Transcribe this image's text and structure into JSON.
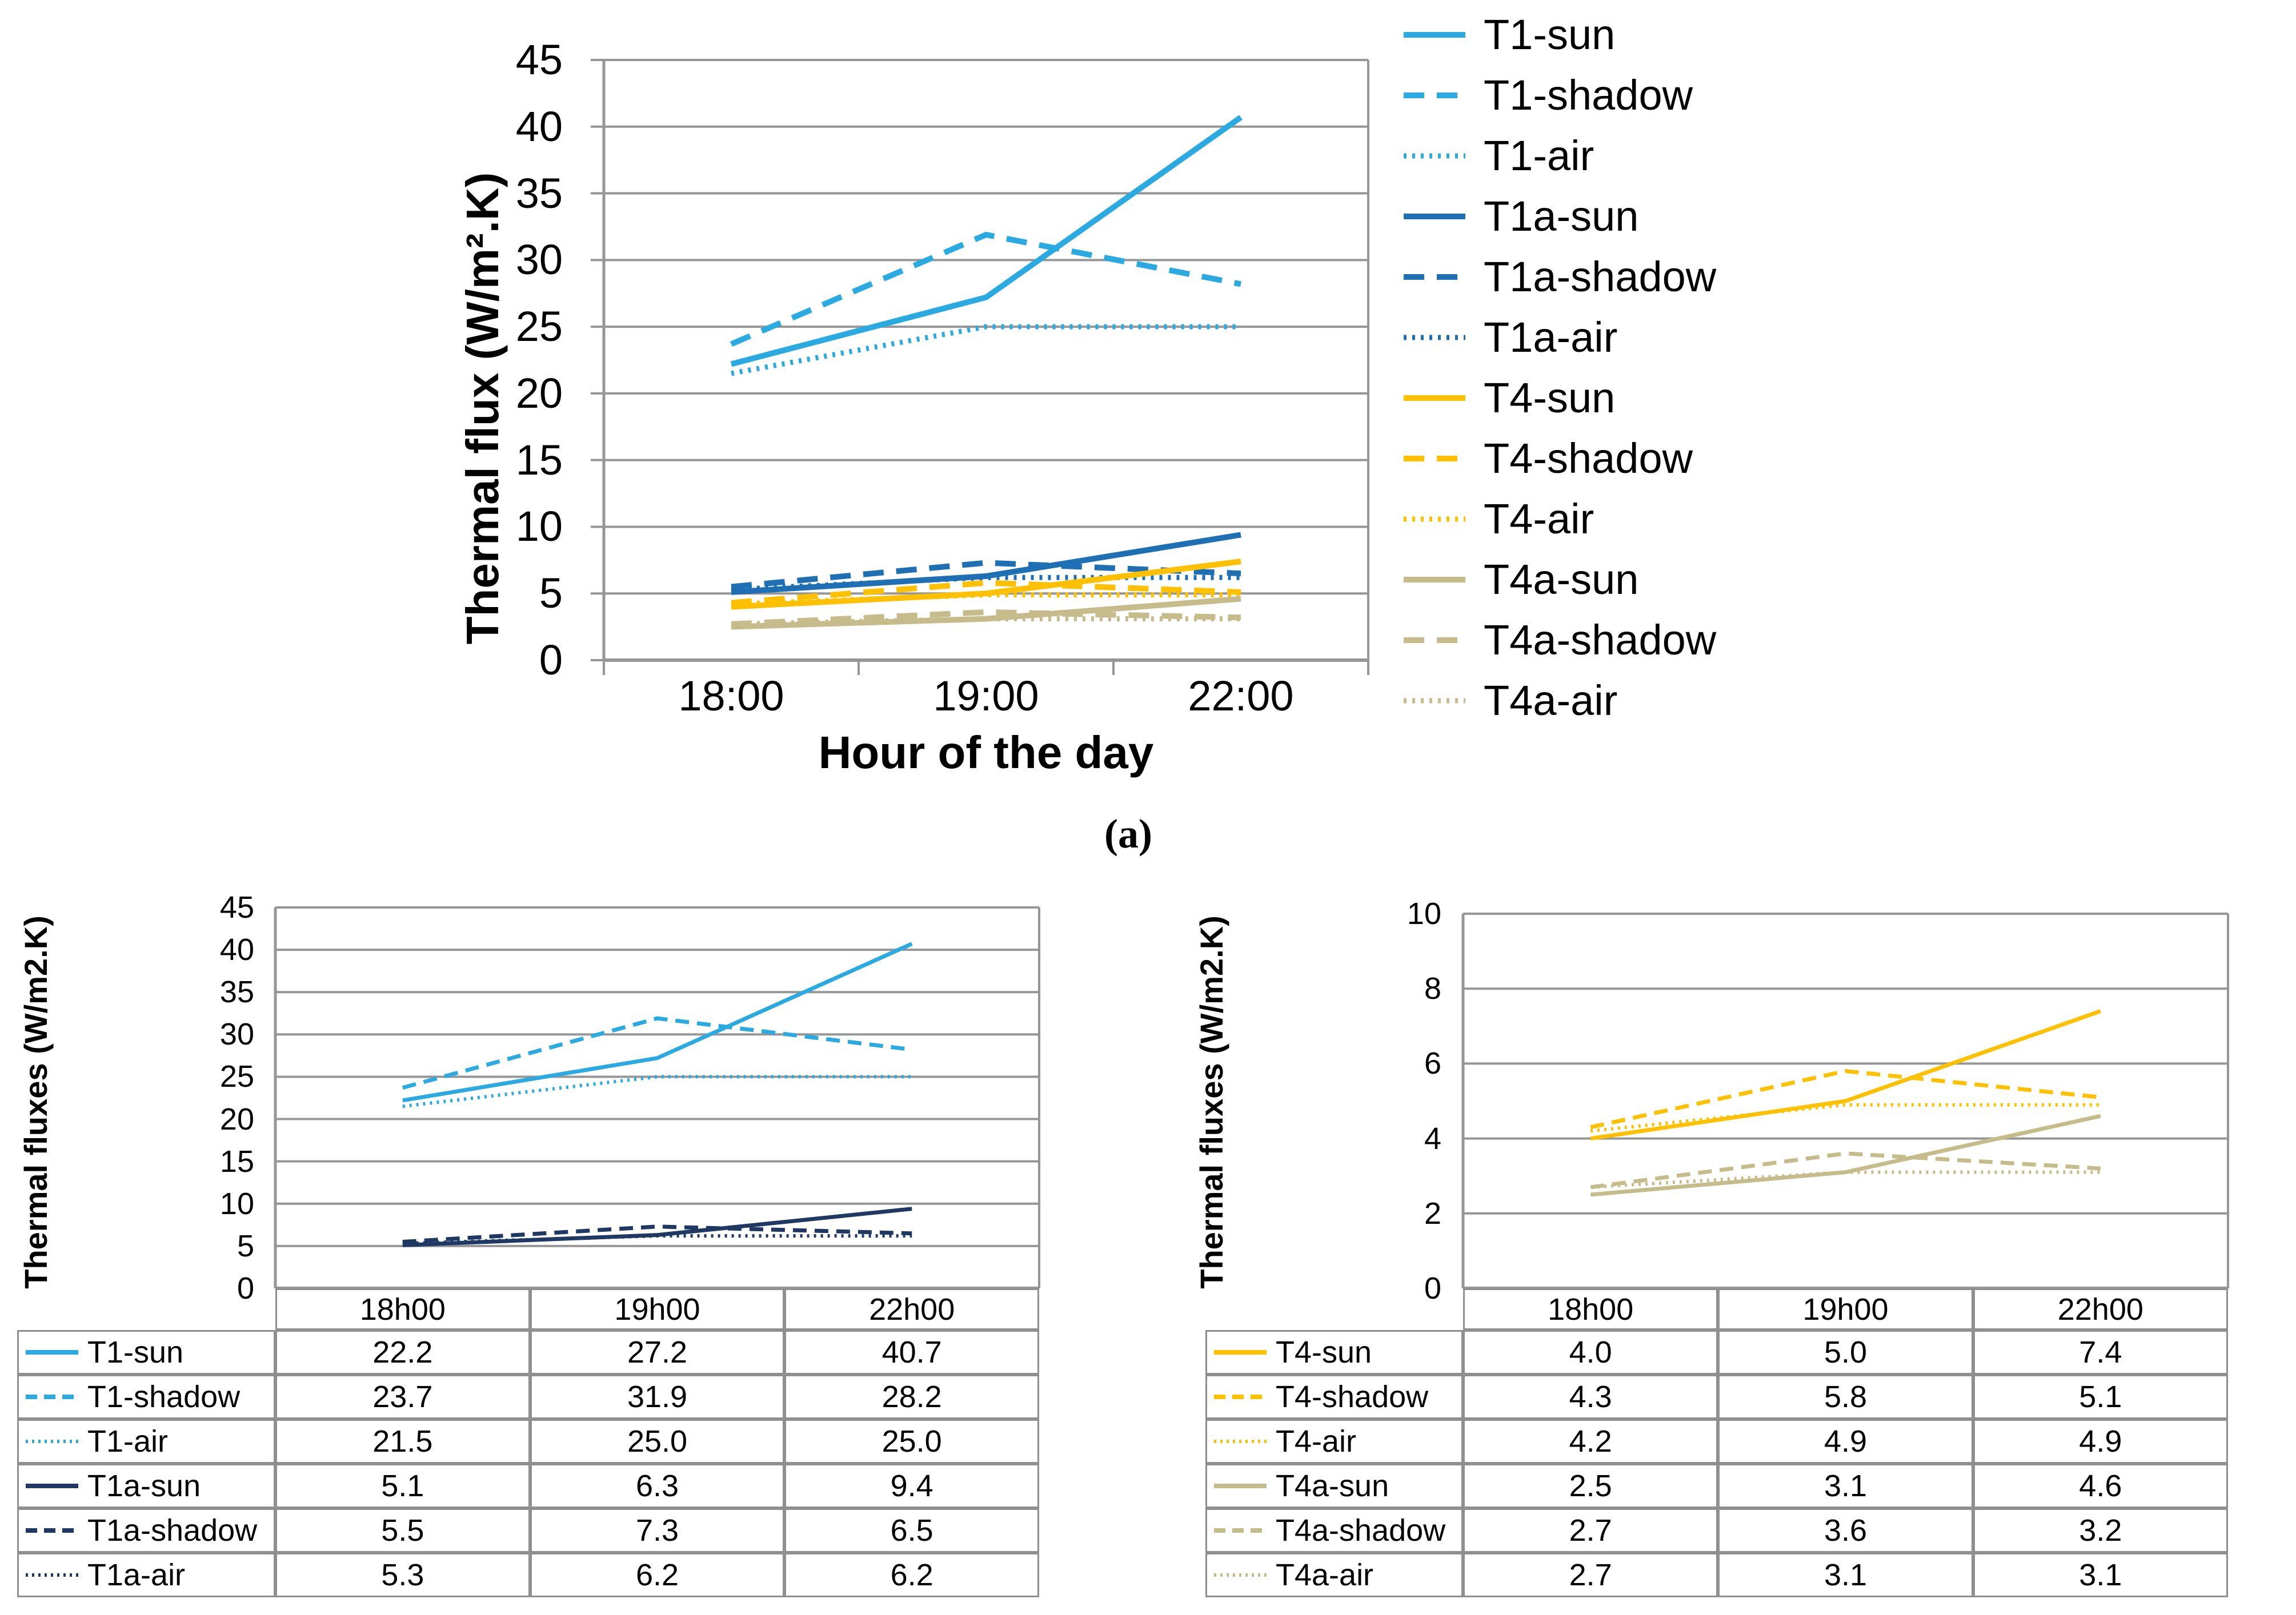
{
  "figure": {
    "panel_label": "(a)",
    "colors": {
      "t1": "#2BAAE2",
      "t1a": "#1F6FB5",
      "t1a_dark": "#1F3864",
      "t4": "#FFC000",
      "t4a": "#C6BC8B",
      "grid": "#969696",
      "axis": "#969696",
      "table_border": "#8F8F8F",
      "text": "#000000"
    }
  },
  "chart_data": [
    {
      "id": "a",
      "type": "line",
      "title": "",
      "xlabel": "Hour of the day",
      "ylabel": "Thermal flux (W/m².K)",
      "categories": [
        "18:00",
        "19:00",
        "22:00"
      ],
      "ylim": [
        0,
        45
      ],
      "ytick_step": 5,
      "grid": true,
      "legend_position": "right",
      "series": [
        {
          "name": "T1-sun",
          "style": "solid",
          "color": "#2BAAE2",
          "values": [
            22.2,
            27.2,
            40.7
          ]
        },
        {
          "name": "T1-shadow",
          "style": "dashed",
          "color": "#2BAAE2",
          "values": [
            23.7,
            31.9,
            28.2
          ]
        },
        {
          "name": "T1-air",
          "style": "dotted",
          "color": "#2BAAE2",
          "values": [
            21.5,
            25.0,
            25.0
          ]
        },
        {
          "name": "T1a-sun",
          "style": "solid",
          "color": "#1F6FB5",
          "values": [
            5.1,
            6.3,
            9.4
          ]
        },
        {
          "name": "T1a-shadow",
          "style": "dashed",
          "color": "#1F6FB5",
          "values": [
            5.5,
            7.3,
            6.5
          ]
        },
        {
          "name": "T1a-air",
          "style": "dotted",
          "color": "#1F6FB5",
          "values": [
            5.3,
            6.2,
            6.2
          ]
        },
        {
          "name": "T4-sun",
          "style": "solid",
          "color": "#FFC000",
          "values": [
            4.0,
            5.0,
            7.4
          ]
        },
        {
          "name": "T4-shadow",
          "style": "dashed",
          "color": "#FFC000",
          "values": [
            4.3,
            5.8,
            5.1
          ]
        },
        {
          "name": "T4-air",
          "style": "dotted",
          "color": "#FFC000",
          "values": [
            4.2,
            4.9,
            4.9
          ]
        },
        {
          "name": "T4a-sun",
          "style": "solid",
          "color": "#C6BC8B",
          "values": [
            2.5,
            3.1,
            4.6
          ]
        },
        {
          "name": "T4a-shadow",
          "style": "dashed",
          "color": "#C6BC8B",
          "values": [
            2.7,
            3.6,
            3.2
          ]
        },
        {
          "name": "T4a-air",
          "style": "dotted",
          "color": "#C6BC8B",
          "values": [
            2.7,
            3.1,
            3.1
          ]
        }
      ]
    },
    {
      "id": "b",
      "type": "line",
      "title": "",
      "xlabel": "",
      "ylabel": "Thermal fluxes (W/m2.K)",
      "categories": [
        "18h00",
        "19h00",
        "22h00"
      ],
      "ylim": [
        0,
        45
      ],
      "ytick_step": 5,
      "grid": true,
      "legend_position": "data-table-left",
      "series": [
        {
          "name": "T1-sun",
          "style": "solid",
          "color": "#2BAAE2",
          "values": [
            22.2,
            27.2,
            40.7
          ]
        },
        {
          "name": "T1-shadow",
          "style": "dashed",
          "color": "#2BAAE2",
          "values": [
            23.7,
            31.9,
            28.2
          ]
        },
        {
          "name": "T1-air",
          "style": "dotted",
          "color": "#2BAAE2",
          "values": [
            21.5,
            25.0,
            25.0
          ]
        },
        {
          "name": "T1a-sun",
          "style": "solid",
          "color": "#1F3864",
          "values": [
            5.1,
            6.3,
            9.4
          ]
        },
        {
          "name": "T1a-shadow",
          "style": "dashed",
          "color": "#1F3864",
          "values": [
            5.5,
            7.3,
            6.5
          ]
        },
        {
          "name": "T1a-air",
          "style": "dotted",
          "color": "#1F3864",
          "values": [
            5.3,
            6.2,
            6.2
          ]
        }
      ]
    },
    {
      "id": "c",
      "type": "line",
      "title": "",
      "xlabel": "",
      "ylabel": "Thermal fluxes (W/m2.K)",
      "categories": [
        "18h00",
        "19h00",
        "22h00"
      ],
      "ylim": [
        0,
        10
      ],
      "ytick_step": 2,
      "grid": true,
      "legend_position": "data-table-left",
      "series": [
        {
          "name": "T4-sun",
          "style": "solid",
          "color": "#FFC000",
          "values": [
            4.0,
            5.0,
            7.4
          ]
        },
        {
          "name": "T4-shadow",
          "style": "dashed",
          "color": "#FFC000",
          "values": [
            4.3,
            5.8,
            5.1
          ]
        },
        {
          "name": "T4-air",
          "style": "dotted",
          "color": "#FFC000",
          "values": [
            4.2,
            4.9,
            4.9
          ]
        },
        {
          "name": "T4a-sun",
          "style": "solid",
          "color": "#C6BC8B",
          "values": [
            2.5,
            3.1,
            4.6
          ]
        },
        {
          "name": "T4a-shadow",
          "style": "dashed",
          "color": "#C6BC8B",
          "values": [
            2.7,
            3.6,
            3.2
          ]
        },
        {
          "name": "T4a-air",
          "style": "dotted",
          "color": "#C6BC8B",
          "values": [
            2.7,
            3.1,
            3.1
          ]
        }
      ]
    }
  ]
}
